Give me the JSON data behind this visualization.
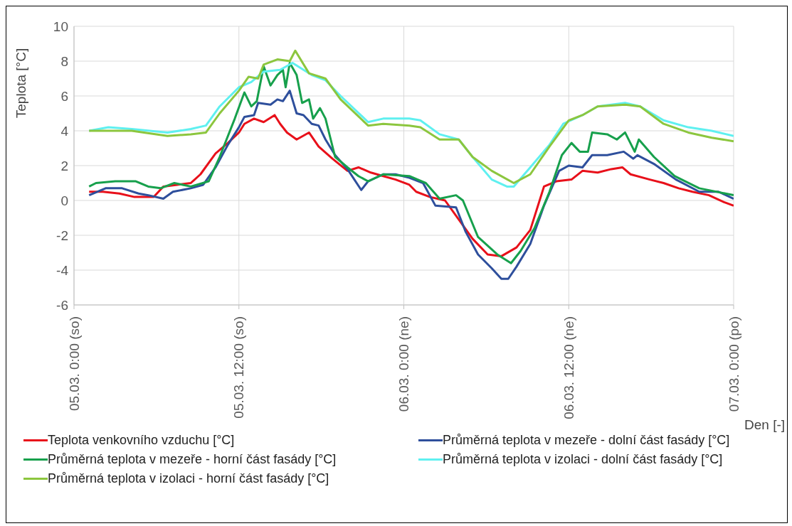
{
  "chart_data": {
    "type": "line",
    "ylabel": "Teplota [°C]",
    "xlabel": "Den [-]",
    "xlim": [
      "--03-05T00:00",
      "--03-07T00:00"
    ],
    "xticks": [
      {
        "value": "--03-05T00:00",
        "label": "05.03. 0:00 (so)"
      },
      {
        "value": "--03-05T12:00",
        "label": "05.03. 12:00 (so)"
      },
      {
        "value": "--03-06T00:00",
        "label": "06.03. 0:00 (ne)"
      },
      {
        "value": "--03-06T12:00",
        "label": "06.03. 12:00 (ne)"
      },
      {
        "value": "--03-07T00:00",
        "label": "07.03. 0:00 (po)"
      }
    ],
    "ylim": [
      -6,
      10
    ],
    "yticks": [
      -6,
      -4,
      -2,
      0,
      2,
      4,
      6,
      8,
      10
    ],
    "grid": true,
    "legend": "bottom",
    "marker": "none",
    "line_style": "solid",
    "series": [
      {
        "name": "Teplota venkovního vzduchu [°C]",
        "color": "#e8101a",
        "x": [
          "--03-05T01:06",
          "--03-05T02:06",
          "--03-05T03:18",
          "--03-05T04:24",
          "--03-05T05:48",
          "--03-05T06:30",
          "--03-05T07:30",
          "--03-05T08:30",
          "--03-05T09:12",
          "--03-05T10:18",
          "--03-05T11:12",
          "--03-05T12:00",
          "--03-05T12:24",
          "--03-05T13:06",
          "--03-05T13:48",
          "--03-05T14:36",
          "--03-05T15:00",
          "--03-05T15:30",
          "--03-05T16:12",
          "--03-05T17:06",
          "--03-05T17:48",
          "--03-05T18:48",
          "--03-05T19:54",
          "--03-05T20:42",
          "--03-05T21:36",
          "--03-05T22:30",
          "--03-05T23:24",
          "--03-06T00:24",
          "--03-06T00:54",
          "--03-06T01:54",
          "--03-06T03:00",
          "--03-06T04:00",
          "--03-06T05:00",
          "--03-06T06:06",
          "--03-06T07:06",
          "--03-06T08:12",
          "--03-06T09:12",
          "--03-06T10:12",
          "--03-06T11:06",
          "--03-06T12:12",
          "--03-06T13:00",
          "--03-06T14:06",
          "--03-06T15:06",
          "--03-06T15:54",
          "--03-06T16:30",
          "--03-06T17:54",
          "--03-06T18:54",
          "--03-06T20:00",
          "--03-06T21:00",
          "--03-06T22:12",
          "--03-06T23:18",
          "--03-07T00:00"
        ],
        "values": [
          0.5,
          0.5,
          0.4,
          0.2,
          0.2,
          0.8,
          0.9,
          1.0,
          1.5,
          2.7,
          3.3,
          3.9,
          4.4,
          4.7,
          4.5,
          4.9,
          4.4,
          3.9,
          3.5,
          3.9,
          3.1,
          2.4,
          1.7,
          1.9,
          1.6,
          1.4,
          1.2,
          0.9,
          0.5,
          0.2,
          0.0,
          -1.1,
          -2.2,
          -3.1,
          -3.2,
          -2.7,
          -1.7,
          0.8,
          1.1,
          1.2,
          1.7,
          1.6,
          1.8,
          1.9,
          1.5,
          1.2,
          1.0,
          0.7,
          0.5,
          0.3,
          -0.1,
          -0.3
        ]
      },
      {
        "name": "Průměrná teplota v mezeře - dolní část fasády [°C]",
        "color": "#2e4f9c",
        "x": [
          "--03-05T01:06",
          "--03-05T02:18",
          "--03-05T03:30",
          "--03-05T04:42",
          "--03-05T05:24",
          "--03-05T06:30",
          "--03-05T07:12",
          "--03-05T08:30",
          "--03-05T09:24",
          "--03-05T10:18",
          "--03-05T11:12",
          "--03-05T12:00",
          "--03-05T12:24",
          "--03-05T13:06",
          "--03-05T13:24",
          "--03-05T14:18",
          "--03-05T14:48",
          "--03-05T15:12",
          "--03-05T15:42",
          "--03-05T16:12",
          "--03-05T16:42",
          "--03-05T17:18",
          "--03-05T17:48",
          "--03-05T18:18",
          "--03-05T19:00",
          "--03-05T19:54",
          "--03-05T20:54",
          "--03-05T21:24",
          "--03-05T22:30",
          "--03-05T23:24",
          "--03-06T00:24",
          "--03-06T01:24",
          "--03-06T02:18",
          "--03-06T03:48",
          "--03-06T04:30",
          "--03-06T05:24",
          "--03-06T06:24",
          "--03-06T07:06",
          "--03-06T07:36",
          "--03-06T08:12",
          "--03-06T09:12",
          "--03-06T10:12",
          "--03-06T11:18",
          "--03-06T12:00",
          "--03-06T13:00",
          "--03-06T13:42",
          "--03-06T14:48",
          "--03-06T16:00",
          "--03-06T16:42",
          "--03-06T17:00",
          "--03-06T18:12",
          "--03-06T19:48",
          "--03-06T21:30",
          "--03-06T22:54",
          "--03-07T00:00"
        ],
        "values": [
          0.3,
          0.7,
          0.7,
          0.4,
          0.3,
          0.1,
          0.5,
          0.7,
          0.9,
          1.9,
          3.2,
          4.2,
          4.8,
          4.9,
          5.6,
          5.5,
          5.8,
          5.7,
          6.3,
          5.0,
          4.9,
          4.4,
          4.3,
          3.5,
          2.6,
          1.8,
          0.6,
          1.1,
          1.5,
          1.5,
          1.3,
          1.0,
          -0.3,
          -0.4,
          -1.8,
          -3.1,
          -3.9,
          -4.5,
          -4.5,
          -3.8,
          -2.5,
          -0.3,
          1.7,
          2.0,
          1.9,
          2.6,
          2.6,
          2.8,
          2.4,
          2.6,
          2.1,
          1.2,
          0.5,
          0.5,
          0.1
        ]
      },
      {
        "name": "Průměrná teplota v mezeře - horní část fasády [°C]",
        "color": "#17a04c",
        "x": [
          "--03-05T01:06",
          "--03-05T01:36",
          "--03-05T03:00",
          "--03-05T04:30",
          "--03-05T05:24",
          "--03-05T06:18",
          "--03-05T07:18",
          "--03-05T08:30",
          "--03-05T09:48",
          "--03-05T10:36",
          "--03-05T11:42",
          "--03-05T12:24",
          "--03-05T12:54",
          "--03-05T13:18",
          "--03-05T13:48",
          "--03-05T14:18",
          "--03-05T14:48",
          "--03-05T15:12",
          "--03-05T15:24",
          "--03-05T15:42",
          "--03-05T16:12",
          "--03-05T16:36",
          "--03-05T17:06",
          "--03-05T17:24",
          "--03-05T17:54",
          "--03-05T18:18",
          "--03-05T19:00",
          "--03-05T19:54",
          "--03-05T20:42",
          "--03-05T21:24",
          "--03-05T22:30",
          "--03-06T00:24",
          "--03-06T01:36",
          "--03-06T02:36",
          "--03-06T03:48",
          "--03-06T04:18",
          "--03-06T05:24",
          "--03-06T06:48",
          "--03-06T07:48",
          "--03-06T08:30",
          "--03-06T09:30",
          "--03-06T10:36",
          "--03-06T11:30",
          "--03-06T12:12",
          "--03-06T12:48",
          "--03-06T13:24",
          "--03-06T13:42",
          "--03-06T14:48",
          "--03-06T15:30",
          "--03-06T16:06",
          "--03-06T16:48",
          "--03-06T17:06",
          "--03-06T18:12",
          "--03-06T19:42",
          "--03-06T21:30",
          "--03-07T00:00"
        ],
        "values": [
          0.8,
          1.0,
          1.1,
          1.1,
          0.8,
          0.7,
          1.0,
          0.8,
          1.1,
          2.5,
          4.7,
          6.2,
          5.4,
          5.7,
          7.7,
          6.6,
          7.2,
          7.5,
          6.5,
          7.9,
          7.2,
          5.6,
          5.8,
          4.7,
          5.3,
          4.7,
          2.5,
          1.9,
          1.4,
          1.1,
          1.5,
          1.4,
          1.0,
          0.1,
          0.3,
          0.0,
          -2.1,
          -3.1,
          -3.6,
          -2.9,
          -1.6,
          0.5,
          2.6,
          3.3,
          2.8,
          2.8,
          3.9,
          3.8,
          3.5,
          3.9,
          2.8,
          3.5,
          2.5,
          1.4,
          0.7,
          0.3
        ]
      },
      {
        "name": "Průměrná teplota v izolaci - dolní část fasády [°C]",
        "color": "#5ff0f0",
        "x": [
          "--03-05T01:06",
          "--03-05T02:30",
          "--03-05T04:12",
          "--03-05T06:48",
          "--03-05T08:30",
          "--03-05T09:36",
          "--03-05T10:36",
          "--03-05T12:00",
          "--03-05T12:54",
          "--03-05T13:48",
          "--03-05T15:00",
          "--03-05T15:54",
          "--03-05T17:18",
          "--03-05T18:18",
          "--03-05T19:24",
          "--03-05T20:36",
          "--03-05T21:24",
          "--03-05T22:30",
          "--03-06T00:24",
          "--03-06T01:12",
          "--03-06T02:36",
          "--03-06T04:00",
          "--03-06T05:00",
          "--03-06T06:24",
          "--03-06T07:30",
          "--03-06T08:00",
          "--03-06T09:12",
          "--03-06T10:36",
          "--03-06T11:36",
          "--03-06T13:00",
          "--03-06T14:06",
          "--03-06T16:06",
          "--03-06T17:12",
          "--03-06T18:54",
          "--03-06T20:42",
          "--03-06T22:24",
          "--03-07T00:00"
        ],
        "values": [
          4.0,
          4.2,
          4.1,
          3.9,
          4.1,
          4.3,
          5.4,
          6.5,
          6.8,
          7.4,
          7.5,
          7.9,
          7.2,
          6.9,
          6.0,
          5.1,
          4.5,
          4.7,
          4.7,
          4.6,
          3.8,
          3.5,
          2.5,
          1.2,
          0.8,
          0.8,
          1.9,
          3.2,
          4.4,
          4.9,
          5.4,
          5.6,
          5.4,
          4.6,
          4.2,
          4.0,
          3.7
        ]
      },
      {
        "name": "Průměrná teplota v izolaci - horní část fasády [°C]",
        "color": "#8cc63e",
        "x": [
          "--03-05T01:06",
          "--03-05T02:30",
          "--03-05T04:12",
          "--03-05T06:48",
          "--03-05T08:30",
          "--03-05T09:36",
          "--03-05T10:36",
          "--03-05T12:00",
          "--03-05T12:42",
          "--03-05T13:24",
          "--03-05T13:48",
          "--03-05T14:48",
          "--03-05T15:42",
          "--03-05T16:06",
          "--03-05T17:06",
          "--03-05T18:18",
          "--03-05T19:24",
          "--03-05T20:36",
          "--03-05T21:24",
          "--03-05T22:30",
          "--03-06T00:24",
          "--03-06T01:12",
          "--03-06T02:36",
          "--03-06T04:00",
          "--03-06T05:00",
          "--03-06T06:24",
          "--03-06T08:00",
          "--03-06T09:12",
          "--03-06T10:36",
          "--03-06T12:00",
          "--03-06T13:00",
          "--03-06T14:06",
          "--03-06T16:06",
          "--03-06T17:12",
          "--03-06T18:54",
          "--03-06T20:42",
          "--03-06T22:24",
          "--03-07T00:00"
        ],
        "values": [
          4.0,
          4.0,
          4.0,
          3.7,
          3.8,
          3.9,
          5.0,
          6.3,
          7.1,
          7.0,
          7.8,
          8.1,
          8.0,
          8.6,
          7.3,
          7.0,
          5.8,
          4.9,
          4.3,
          4.4,
          4.3,
          4.2,
          3.5,
          3.5,
          2.5,
          1.7,
          1.0,
          1.5,
          3.1,
          4.6,
          4.9,
          5.4,
          5.5,
          5.4,
          4.4,
          3.9,
          3.6,
          3.4
        ]
      }
    ]
  }
}
